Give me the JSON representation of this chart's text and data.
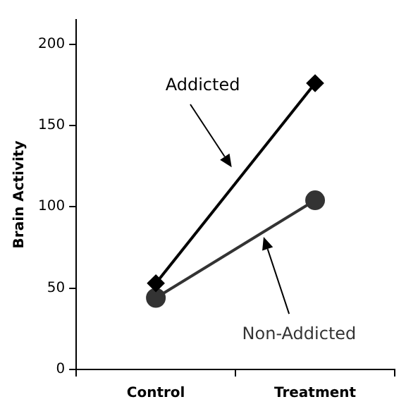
{
  "chart_data": {
    "type": "line",
    "ylabel": "Brain Activity",
    "categories": [
      "Control",
      "Treatment"
    ],
    "series": [
      {
        "name": "Addicted",
        "color": "#000000",
        "values": [
          53,
          176
        ],
        "marker": "diamond"
      },
      {
        "name": "Non-Addicted",
        "color": "#333333",
        "values": [
          44,
          104
        ],
        "marker": "circle"
      }
    ],
    "ylim": [
      0,
      215
    ],
    "yticks": [
      0,
      50,
      100,
      150,
      200
    ],
    "grid": false,
    "legend": false,
    "line_style": "solid"
  }
}
